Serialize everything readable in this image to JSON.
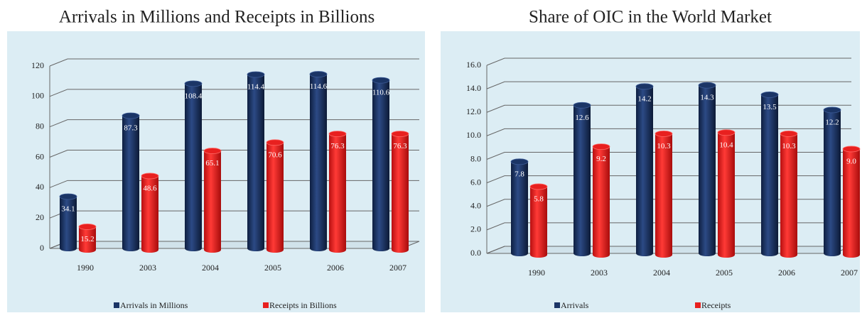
{
  "chart_data": [
    {
      "type": "bar",
      "title": "Arrivals in Millions and Receipts in Billions",
      "categories": [
        "1990",
        "2003",
        "2004",
        "2005",
        "2006",
        "2007"
      ],
      "series": [
        {
          "name": "Arrivals in Millions",
          "color": "#1b3566",
          "values": [
            34.1,
            87.3,
            108.4,
            114.4,
            114.6,
            110.6
          ]
        },
        {
          "name": "Receipts in Billions",
          "color": "#e8201f",
          "values": [
            15.2,
            48.6,
            65.1,
            70.6,
            76.3,
            76.3
          ]
        }
      ],
      "ylim": [
        0,
        120
      ],
      "yticks": [
        0,
        20,
        40,
        60,
        80,
        100,
        120
      ],
      "grid": true,
      "legend": "bottom"
    },
    {
      "type": "bar",
      "title": "Share of OIC in the World Market",
      "categories": [
        "1990",
        "2003",
        "2004",
        "2005",
        "2006",
        "2007"
      ],
      "series": [
        {
          "name": "Arrivals",
          "color": "#1b3566",
          "values": [
            7.8,
            12.6,
            14.2,
            14.3,
            13.5,
            12.2
          ],
          "value_labels": [
            "7.8",
            "12.6",
            "14.2",
            "14.3",
            "13.5",
            "12.2"
          ]
        },
        {
          "name": "Receipts",
          "color": "#e8201f",
          "values": [
            5.8,
            9.2,
            10.3,
            10.4,
            10.3,
            9.0
          ],
          "value_labels": [
            "5.8",
            "9.2",
            "10.3",
            "10.4",
            "10.3",
            "9.0"
          ]
        }
      ],
      "ylim": [
        0,
        16
      ],
      "yticks": [
        {
          "value": 0,
          "label": "0.0"
        },
        {
          "value": 2,
          "label": "2.0"
        },
        {
          "value": 4,
          "label": "4.0"
        },
        {
          "value": 6,
          "label": "6.0"
        },
        {
          "value": 8,
          "label": "8.0"
        },
        {
          "value": 10,
          "label": "10.0"
        },
        {
          "value": 12,
          "label": "12.0"
        },
        {
          "value": 14,
          "label": "14.0"
        },
        {
          "value": 16,
          "label": "16.0"
        }
      ],
      "grid": true,
      "legend": "bottom"
    }
  ]
}
